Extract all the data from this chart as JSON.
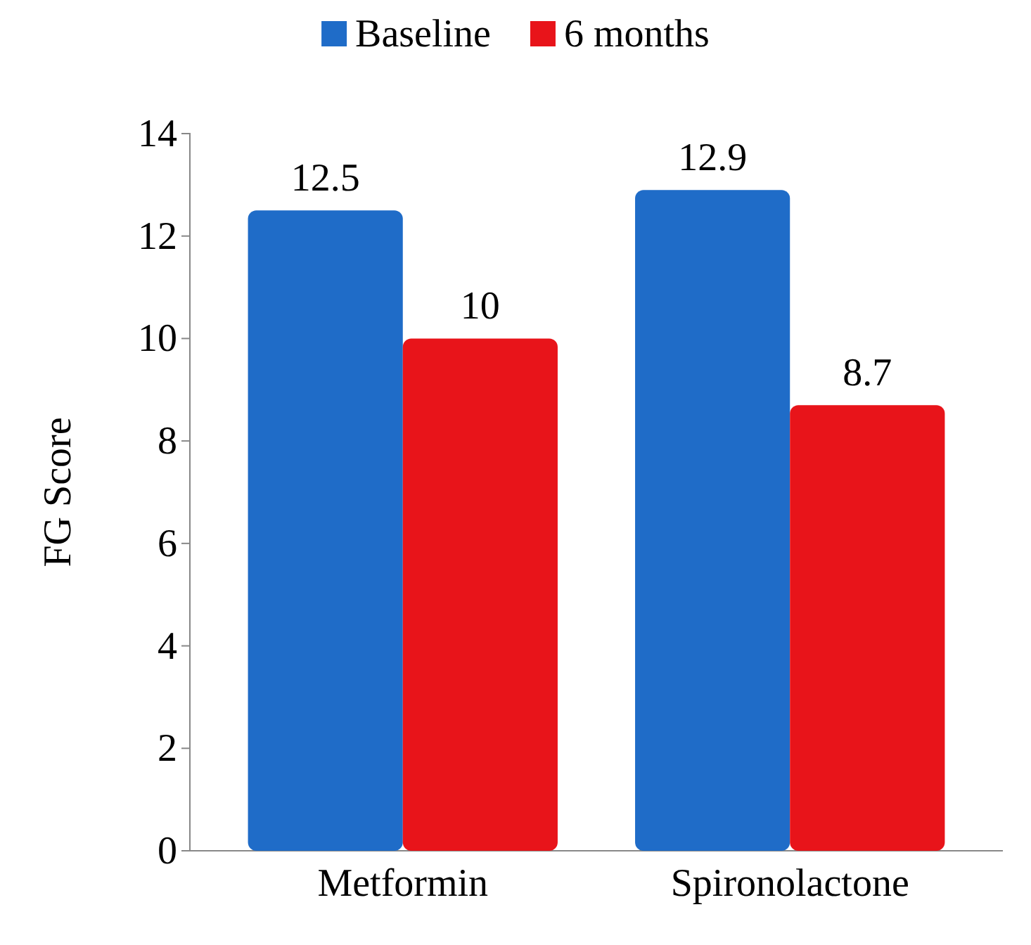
{
  "chart_data": {
    "type": "bar",
    "ylabel": "FG Score",
    "categories": [
      "Metformin",
      "Spironolactone"
    ],
    "series": [
      {
        "name": "Baseline",
        "color": "#1f6cc8",
        "values": [
          12.5,
          12.9
        ]
      },
      {
        "name": "6 months",
        "color": "#e8141a",
        "values": [
          10,
          8.7
        ]
      }
    ],
    "ylim": [
      0,
      14
    ],
    "yticks": [
      0,
      2,
      4,
      6,
      8,
      10,
      12,
      14
    ],
    "data_labels": true,
    "legend": "top",
    "grid": false
  }
}
